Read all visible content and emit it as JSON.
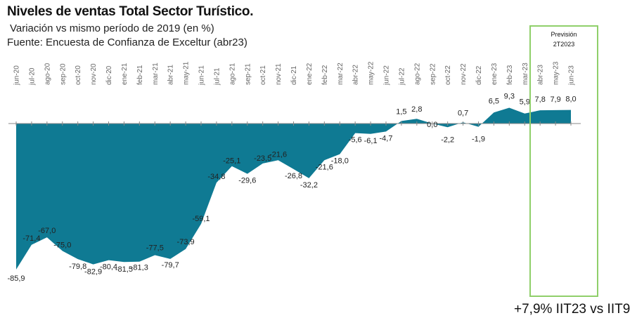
{
  "header": {
    "title": "Niveles de ventas Total Sector Turístico.",
    "subtitle": "Variación vs mismo período de  2019 (en %)",
    "source": "Fuente: Encuesta de Confianza de Exceltur (abr23)"
  },
  "forecast": {
    "title": "Previsión",
    "period": "2T2023"
  },
  "footnote": "+7,9% IIT23 vs IIT9",
  "colors": {
    "area": "#0f7a93",
    "forecast_box": "#8fcf6a",
    "axis": "#888888"
  },
  "chart_data": {
    "type": "area",
    "title": "Niveles de ventas Total Sector Turístico.",
    "ylabel": "Variación vs mismo período de 2019 (en %)",
    "categories": [
      "jun-20",
      "jul-20",
      "ago-20",
      "sep-20",
      "oct-20",
      "nov-20",
      "dic-20",
      "ene-21",
      "feb-21",
      "mar-21",
      "abr-21",
      "may-21",
      "jun-21",
      "jul-21",
      "ago-21",
      "sep-21",
      "oct-21",
      "nov-21",
      "dic-21",
      "ene-22",
      "feb-22",
      "mar-22",
      "abr-22",
      "may-22",
      "jun-22",
      "jul-22",
      "ago-22",
      "sep-22",
      "oct-22",
      "nov-22",
      "dic-22",
      "ene-23",
      "feb-23",
      "mar-23",
      "abr-23",
      "may-23",
      "jun-23"
    ],
    "values": [
      -85.9,
      -71.4,
      -67.0,
      -75.0,
      -79.8,
      -82.9,
      -80.4,
      -81.5,
      -81.3,
      -77.5,
      -79.7,
      -73.9,
      -59.1,
      -34.8,
      -25.1,
      -29.6,
      -23.5,
      -21.6,
      -26.8,
      -32.2,
      -21.6,
      -18.0,
      -5.6,
      -6.1,
      -4.7,
      1.5,
      2.8,
      0.0,
      -2.2,
      0.7,
      -1.9,
      6.5,
      9.3,
      5.9,
      7.8,
      7.9,
      8.0
    ],
    "value_labels": [
      "-85,9",
      "-71,4",
      "-67,0",
      "-75,0",
      "-79,8",
      "-82,9",
      "-80,4",
      "-81,5",
      "-81,3",
      "-77,5",
      "-79,7",
      "-73,9",
      "-59,1",
      "-34,8",
      "-25,1",
      "-29,6",
      "-23,5",
      "-21,6",
      "-26,8",
      "-32,2",
      "-21,6",
      "-18,0",
      "-5,6",
      "-6,1",
      "-4,7",
      "1,5",
      "2,8",
      "0,0",
      "-2,2",
      "0,7",
      "-1,9",
      "6,5",
      "9,3",
      "5,9",
      "7,8",
      "7,9",
      "8,0"
    ],
    "forecast_from": "abr-23",
    "forecast_to": "jun-23",
    "ylim": [
      -90,
      12
    ],
    "grid": false,
    "legend": "none"
  }
}
